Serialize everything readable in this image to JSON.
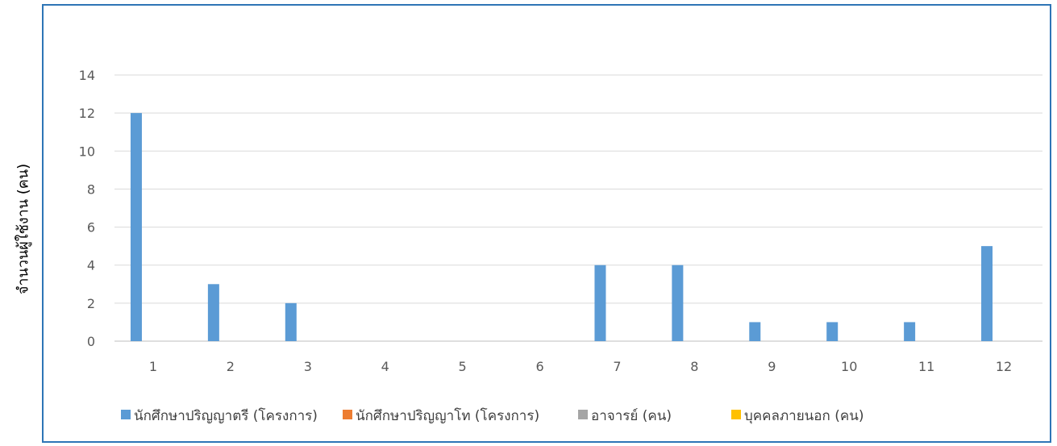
{
  "chart_data": {
    "type": "bar",
    "ylabel": "จำนวนผู้ใช้งาน  (คน)",
    "ylim": [
      0,
      14
    ],
    "y_ticks": [
      0,
      2,
      4,
      6,
      8,
      10,
      12,
      14
    ],
    "grid": true,
    "legend_position": "bottom",
    "categories": [
      "1",
      "2",
      "3",
      "4",
      "5",
      "6",
      "7",
      "8",
      "9",
      "10",
      "11",
      "12"
    ],
    "series": [
      {
        "name": "นักศึกษาปริญญาตรี (โครงการ)",
        "color": "#5b9bd5",
        "values": [
          12,
          3,
          2,
          0,
          0,
          0,
          4,
          4,
          1,
          1,
          1,
          5
        ]
      },
      {
        "name": "นักศึกษาปริญญาโท (โครงการ)",
        "color": "#ed7d31",
        "values": [
          0,
          0,
          0,
          0,
          0,
          0,
          0,
          0,
          0,
          0,
          0,
          0
        ]
      },
      {
        "name": "อาจารย์ (คน)",
        "color": "#a5a5a5",
        "values": [
          0,
          0,
          0,
          0,
          0,
          0,
          0,
          0,
          0,
          0,
          0,
          0
        ]
      },
      {
        "name": "บุคคลภายนอก (คน)",
        "color": "#ffc000",
        "values": [
          0,
          0,
          0,
          0,
          0,
          0,
          0,
          0,
          0,
          0,
          0,
          0
        ]
      }
    ]
  }
}
